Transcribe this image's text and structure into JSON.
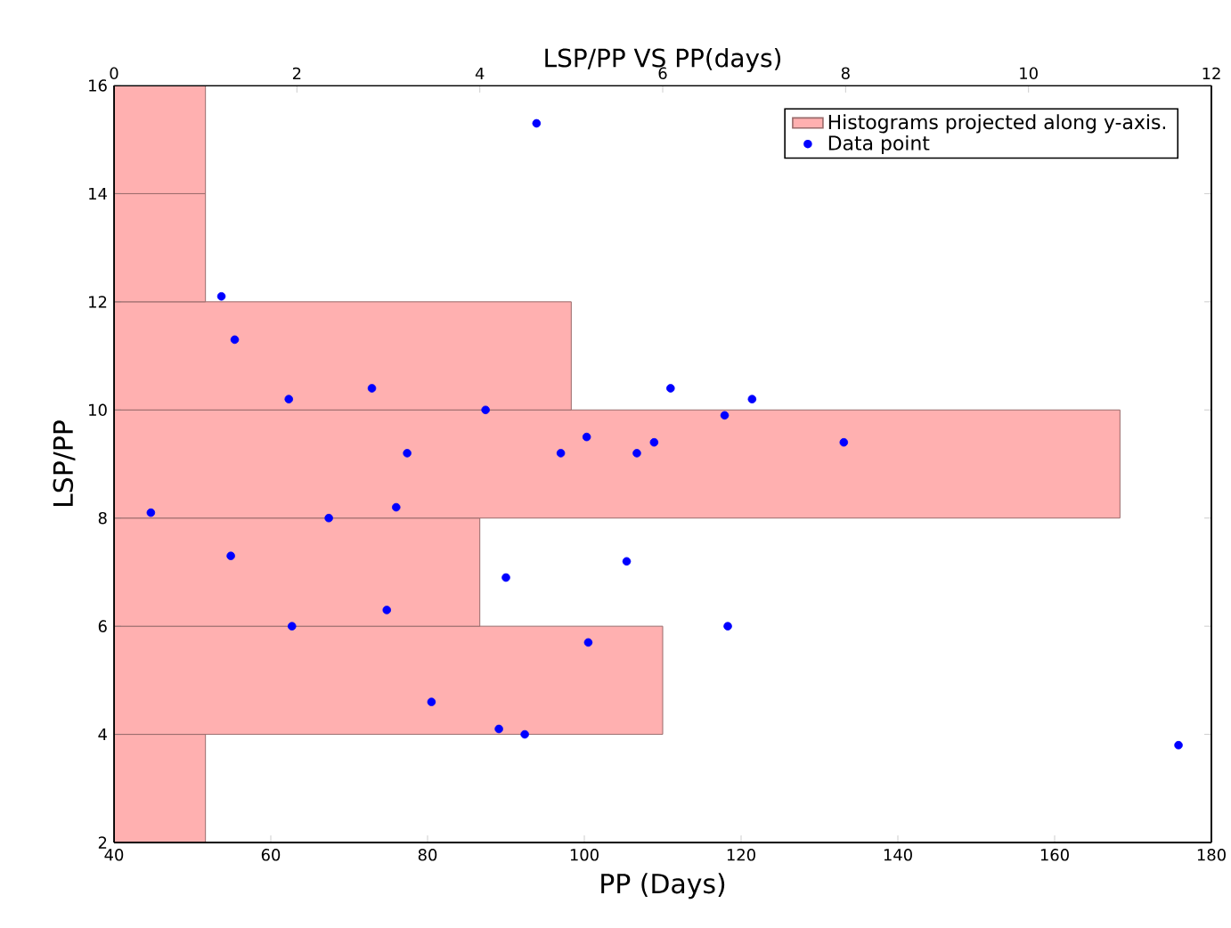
{
  "chart_data": {
    "type": "histogram",
    "orientation": "horizontal",
    "title": "LSP/PP VS PP(days)",
    "xlabel": "PP (Days)",
    "ylabel": "LSP/PP",
    "xlim": [
      40,
      180
    ],
    "xticks": [
      40,
      60,
      80,
      100,
      120,
      140,
      160,
      180
    ],
    "x2lim": [
      0,
      12
    ],
    "x2ticks": [
      0,
      2,
      4,
      6,
      8,
      10,
      12
    ],
    "ylim": [
      2,
      16
    ],
    "yticks": [
      2,
      4,
      6,
      8,
      10,
      12,
      14,
      16
    ],
    "legend": "top right",
    "series": [
      {
        "name": "Histograms projected along y-axis.",
        "color": "#ffb0b0",
        "axis": "x2",
        "bins": [
          2,
          4,
          6,
          8,
          10,
          12,
          14,
          16
        ],
        "values": [
          1,
          6,
          4,
          11,
          5,
          1,
          1
        ]
      },
      {
        "type": "scatter",
        "name": "Data point",
        "color": "#0000ff",
        "values": [
          93.9,
          53.7,
          55.4,
          62.3,
          72.9,
          87.4,
          77.4,
          111.0,
          121.4,
          117.9,
          133.1,
          97.0,
          100.3,
          106.7,
          108.9,
          44.7,
          67.4,
          76.0,
          54.9,
          90.0,
          105.4,
          74.8,
          62.7,
          100.5,
          80.5,
          89.1,
          92.4,
          118.3,
          175.8
        ],
        "x": [
          15.3,
          12.1,
          11.3,
          10.2,
          10.4,
          10.0,
          9.2,
          10.4,
          10.2,
          9.9,
          9.4,
          9.2,
          9.5,
          9.2,
          9.4,
          8.1,
          8.0,
          8.2,
          7.3,
          6.9,
          7.2,
          6.3,
          6.0,
          5.7,
          4.6,
          4.1,
          4.0,
          6.0,
          3.8
        ]
      }
    ]
  }
}
